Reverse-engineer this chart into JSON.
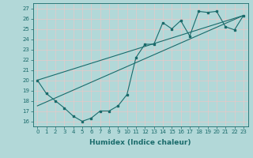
{
  "xlabel": "Humidex (Indice chaleur)",
  "bg_color": "#b2d8d8",
  "grid_color": "#c8e8e8",
  "line_color": "#1a6b6b",
  "xlim": [
    -0.5,
    23.5
  ],
  "ylim": [
    15.5,
    27.5
  ],
  "yticks": [
    16,
    17,
    18,
    19,
    20,
    21,
    22,
    23,
    24,
    25,
    26,
    27
  ],
  "xticks": [
    0,
    1,
    2,
    3,
    4,
    5,
    6,
    7,
    8,
    9,
    10,
    11,
    12,
    13,
    14,
    15,
    16,
    17,
    18,
    19,
    20,
    21,
    22,
    23
  ],
  "data_x": [
    0,
    1,
    2,
    3,
    4,
    5,
    6,
    7,
    8,
    9,
    10,
    11,
    12,
    13,
    14,
    15,
    16,
    17,
    18,
    19,
    20,
    21,
    22,
    23
  ],
  "data_y": [
    20,
    18.7,
    18,
    17.3,
    16.5,
    16,
    16.3,
    17,
    17,
    17.5,
    18.6,
    22.2,
    23.5,
    23.5,
    25.6,
    25,
    25.8,
    24.3,
    26.7,
    26.6,
    26.7,
    25.2,
    24.9,
    26.3
  ],
  "line1_x": [
    0,
    23
  ],
  "line1_y": [
    20,
    26.3
  ],
  "line2_x": [
    0,
    23
  ],
  "line2_y": [
    17.5,
    26.3
  ],
  "tick_fontsize": 5.0,
  "xlabel_fontsize": 6.5
}
